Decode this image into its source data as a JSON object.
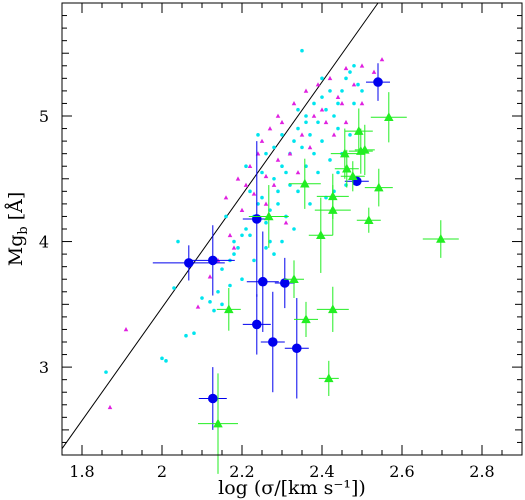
{
  "chart_data": {
    "type": "scatter",
    "xlabel": "log (σ/[km s⁻¹])",
    "ylabel_main": "Mg",
    "ylabel_sub": "b",
    "ylabel_unit": "[Å]",
    "xlim": [
      1.75,
      2.9
    ],
    "ylim": [
      2.3,
      5.9
    ],
    "x_ticks": [
      "1.8",
      "2",
      "2.2",
      "2.4",
      "2.6",
      "2.8"
    ],
    "x_tick_values": [
      1.8,
      2.0,
      2.2,
      2.4,
      2.6,
      2.8
    ],
    "y_ticks": [
      "3",
      "4",
      "5"
    ],
    "y_tick_values": [
      3,
      4,
      5
    ],
    "fit_line": {
      "x": [
        1.75,
        2.54
      ],
      "y": [
        2.35,
        5.9
      ]
    },
    "colors": {
      "cyan": "#00e5ee",
      "magenta": "#e020e0",
      "blue": "#0000ee",
      "green": "#22ee22",
      "axes": "#000000"
    },
    "series": [
      {
        "marker": "small-dot",
        "color": "cyan",
        "points": [
          [
            1.86,
            2.96
          ],
          [
            2.0,
            3.07
          ],
          [
            2.01,
            3.05
          ],
          [
            2.03,
            3.63
          ],
          [
            2.04,
            4.0
          ],
          [
            2.06,
            3.25
          ],
          [
            2.08,
            3.27
          ],
          [
            2.1,
            3.55
          ],
          [
            2.12,
            3.52
          ],
          [
            2.14,
            3.6
          ],
          [
            2.15,
            3.78
          ],
          [
            2.17,
            3.85
          ],
          [
            2.18,
            3.9
          ],
          [
            2.19,
            3.95
          ],
          [
            2.2,
            4.05
          ],
          [
            2.21,
            4.1
          ],
          [
            2.22,
            4.05
          ],
          [
            2.23,
            4.2
          ],
          [
            2.24,
            4.3
          ],
          [
            2.25,
            4.35
          ],
          [
            2.26,
            4.15
          ],
          [
            2.27,
            4.25
          ],
          [
            2.28,
            4.5
          ],
          [
            2.29,
            4.4
          ],
          [
            2.3,
            4.6
          ],
          [
            2.31,
            4.55
          ],
          [
            2.32,
            4.7
          ],
          [
            2.33,
            4.8
          ],
          [
            2.34,
            4.9
          ],
          [
            2.35,
            4.75
          ],
          [
            2.36,
            5.0
          ],
          [
            2.37,
            4.85
          ],
          [
            2.38,
            5.1
          ],
          [
            2.39,
            4.95
          ],
          [
            2.4,
            5.15
          ],
          [
            2.41,
            5.05
          ],
          [
            2.42,
            5.2
          ],
          [
            2.43,
            5.0
          ],
          [
            2.44,
            4.9
          ],
          [
            2.45,
            5.2
          ],
          [
            2.46,
            5.3
          ],
          [
            2.47,
            5.35
          ],
          [
            2.48,
            5.1
          ],
          [
            2.49,
            5.25
          ],
          [
            2.35,
            5.52
          ],
          [
            2.24,
            4.85
          ],
          [
            2.21,
            4.6
          ],
          [
            2.26,
            4.7
          ],
          [
            2.29,
            4.3
          ],
          [
            2.32,
            4.45
          ],
          [
            2.36,
            4.6
          ],
          [
            2.38,
            4.7
          ],
          [
            2.4,
            4.8
          ],
          [
            2.42,
            4.65
          ],
          [
            2.44,
            4.55
          ],
          [
            2.46,
            4.45
          ],
          [
            2.39,
            4.55
          ],
          [
            2.34,
            4.4
          ],
          [
            2.31,
            4.2
          ],
          [
            2.27,
            4.0
          ],
          [
            2.23,
            3.85
          ],
          [
            2.2,
            3.7
          ],
          [
            2.17,
            3.65
          ],
          [
            2.15,
            3.5
          ],
          [
            2.13,
            3.45
          ],
          [
            2.41,
            4.35
          ],
          [
            2.43,
            4.4
          ],
          [
            2.45,
            4.7
          ],
          [
            2.47,
            4.85
          ],
          [
            2.3,
            4.0
          ],
          [
            2.28,
            3.9
          ],
          [
            2.33,
            4.1
          ],
          [
            2.37,
            4.3
          ],
          [
            2.25,
            4.55
          ],
          [
            2.22,
            4.4
          ],
          [
            2.18,
            4.0
          ],
          [
            2.16,
            4.2
          ],
          [
            2.26,
            3.95
          ],
          [
            2.44,
            5.1
          ],
          [
            2.48,
            5.4
          ],
          [
            2.5,
            5.2
          ],
          [
            2.36,
            4.95
          ],
          [
            2.4,
            5.3
          ],
          [
            2.34,
            5.05
          ],
          [
            2.3,
            4.85
          ],
          [
            2.28,
            4.75
          ]
        ]
      },
      {
        "marker": "small-triangle",
        "color": "magenta",
        "points": [
          [
            1.87,
            2.68
          ],
          [
            1.91,
            3.3
          ],
          [
            2.09,
            3.48
          ],
          [
            2.12,
            3.72
          ],
          [
            2.16,
            4.35
          ],
          [
            2.17,
            4.05
          ],
          [
            2.19,
            4.5
          ],
          [
            2.2,
            4.25
          ],
          [
            2.22,
            4.6
          ],
          [
            2.23,
            4.38
          ],
          [
            2.25,
            4.8
          ],
          [
            2.26,
            4.52
          ],
          [
            2.27,
            4.9
          ],
          [
            2.29,
            4.65
          ],
          [
            2.3,
            4.95
          ],
          [
            2.32,
            4.7
          ],
          [
            2.33,
            5.1
          ],
          [
            2.35,
            4.85
          ],
          [
            2.36,
            5.2
          ],
          [
            2.38,
            5.0
          ],
          [
            2.39,
            5.25
          ],
          [
            2.41,
            4.95
          ],
          [
            2.42,
            5.3
          ],
          [
            2.44,
            5.15
          ],
          [
            2.46,
            5.38
          ],
          [
            2.48,
            5.25
          ],
          [
            2.5,
            5.4
          ],
          [
            2.55,
            5.45
          ],
          [
            2.28,
            4.45
          ],
          [
            2.31,
            4.15
          ],
          [
            2.34,
            4.55
          ],
          [
            2.37,
            4.75
          ],
          [
            2.4,
            5.05
          ],
          [
            2.43,
            4.85
          ],
          [
            2.45,
            5.1
          ],
          [
            2.24,
            4.7
          ],
          [
            2.21,
            4.45
          ],
          [
            2.26,
            4.3
          ],
          [
            2.18,
            3.95
          ],
          [
            2.14,
            3.85
          ],
          [
            2.46,
            4.95
          ],
          [
            2.5,
            5.1
          ],
          [
            2.53,
            5.35
          ],
          [
            2.29,
            5.0
          ]
        ]
      },
      {
        "marker": "circle-errorbar",
        "color": "blue",
        "points": [
          {
            "x": 2.067,
            "y": 3.83,
            "xerr": 0.09,
            "yerr": 0.14
          },
          {
            "x": 2.127,
            "y": 3.85,
            "xerr": 0.055,
            "yerr": 0.28
          },
          {
            "x": 2.127,
            "y": 2.75,
            "xerr": 0.035,
            "yerr": 0.25
          },
          {
            "x": 2.237,
            "y": 4.18,
            "xerr": 0.035,
            "yerr": 0.62
          },
          {
            "x": 2.237,
            "y": 3.34,
            "xerr": 0.035,
            "yerr": 0.24
          },
          {
            "x": 2.252,
            "y": 3.68,
            "xerr": 0.04,
            "yerr": 0.4
          },
          {
            "x": 2.277,
            "y": 3.2,
            "xerr": 0.03,
            "yerr": 0.4
          },
          {
            "x": 2.307,
            "y": 3.67,
            "xerr": 0.025,
            "yerr": 0.2
          },
          {
            "x": 2.337,
            "y": 3.15,
            "xerr": 0.03,
            "yerr": 0.4
          },
          {
            "x": 2.487,
            "y": 4.48,
            "xerr": 0.03,
            "yerr": 0.0
          },
          {
            "x": 2.54,
            "y": 5.27,
            "xerr": 0.03,
            "yerr": 0.15
          }
        ]
      },
      {
        "marker": "triangle-errorbar",
        "color": "green",
        "points": [
          {
            "x": 2.14,
            "y": 2.55,
            "xerr": 0.05,
            "yerr": 0.4
          },
          {
            "x": 2.167,
            "y": 3.46,
            "xerr": 0.03,
            "yerr": 0.17
          },
          {
            "x": 2.267,
            "y": 4.2,
            "xerr": 0.05,
            "yerr": 0.25
          },
          {
            "x": 2.33,
            "y": 3.7,
            "xerr": 0.025,
            "yerr": 0.15
          },
          {
            "x": 2.357,
            "y": 4.46,
            "xerr": 0.04,
            "yerr": 0.2
          },
          {
            "x": 2.36,
            "y": 3.38,
            "xerr": 0.03,
            "yerr": 0.14
          },
          {
            "x": 2.397,
            "y": 4.05,
            "xerr": 0.03,
            "yerr": 0.3
          },
          {
            "x": 2.417,
            "y": 2.91,
            "xerr": 0.025,
            "yerr": 0.14
          },
          {
            "x": 2.427,
            "y": 4.36,
            "xerr": 0.04,
            "yerr": 0.18
          },
          {
            "x": 2.427,
            "y": 4.25,
            "xerr": 0.045,
            "yerr": 0.2
          },
          {
            "x": 2.427,
            "y": 3.46,
            "xerr": 0.04,
            "yerr": 0.18
          },
          {
            "x": 2.457,
            "y": 4.7,
            "xerr": 0.035,
            "yerr": 0.2
          },
          {
            "x": 2.462,
            "y": 4.58,
            "xerr": 0.03,
            "yerr": 0.15
          },
          {
            "x": 2.477,
            "y": 4.52,
            "xerr": 0.03,
            "yerr": 0.12
          },
          {
            "x": 2.492,
            "y": 4.88,
            "xerr": 0.035,
            "yerr": 0.18
          },
          {
            "x": 2.497,
            "y": 4.72,
            "xerr": 0.03,
            "yerr": 0.18
          },
          {
            "x": 2.507,
            "y": 4.73,
            "xerr": 0.025,
            "yerr": 0.2
          },
          {
            "x": 2.517,
            "y": 4.17,
            "xerr": 0.03,
            "yerr": 0.1
          },
          {
            "x": 2.542,
            "y": 4.43,
            "xerr": 0.035,
            "yerr": 0.15
          },
          {
            "x": 2.567,
            "y": 4.99,
            "xerr": 0.045,
            "yerr": 0.2
          },
          {
            "x": 2.697,
            "y": 4.02,
            "xerr": 0.045,
            "yerr": 0.15
          }
        ]
      }
    ]
  }
}
